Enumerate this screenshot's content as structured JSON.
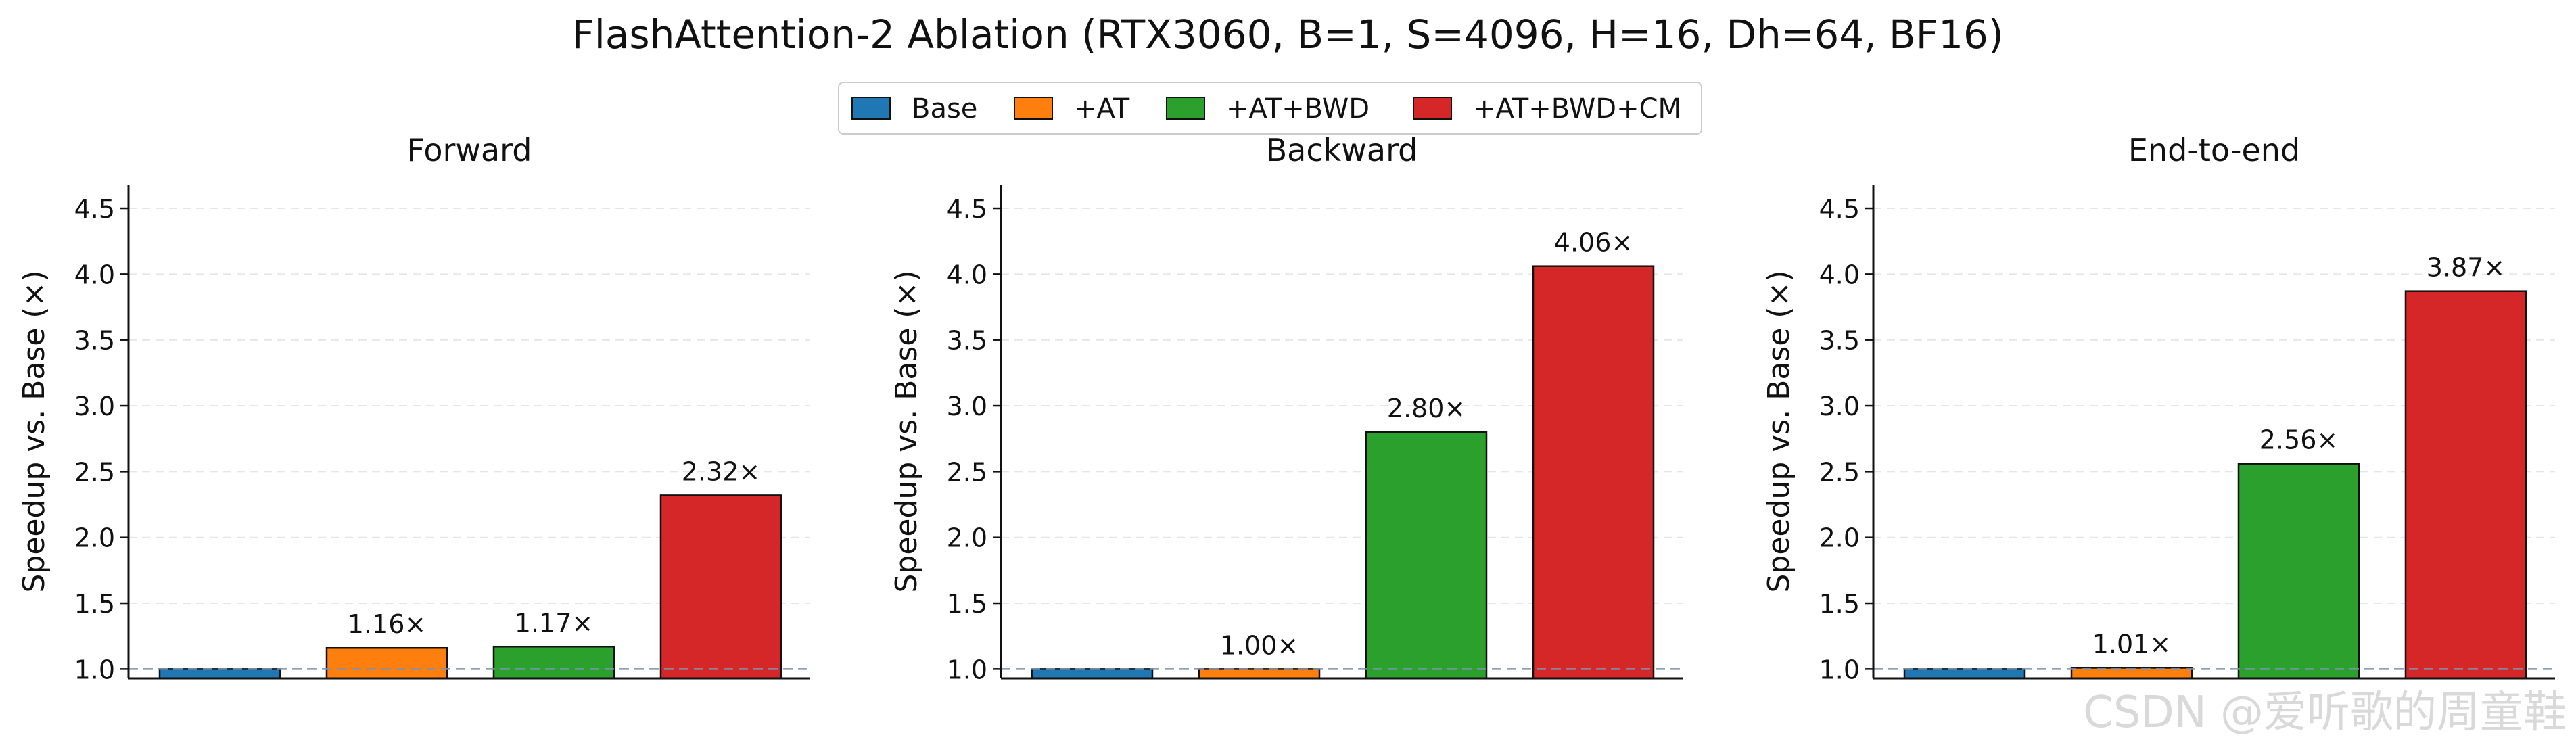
{
  "figure": {
    "title": "FlashAttention-2 Ablation (RTX3060, B=1, S=4096, H=16, Dh=64, BF16)",
    "watermark": "CSDN @爱听歌的周童鞋"
  },
  "legend": {
    "placement": "top-center",
    "entries": [
      {
        "label": "Base",
        "color": "#1f77b4"
      },
      {
        "label": "+AT",
        "color": "#ff7f0e"
      },
      {
        "label": "+AT+BWD",
        "color": "#2ca02c"
      },
      {
        "label": "+AT+BWD+CM",
        "color": "#d62728"
      }
    ]
  },
  "chart_data": [
    {
      "type": "bar",
      "title": "Forward",
      "ylabel": "Speedup vs. Base (×)",
      "xlabel": "",
      "categories": [
        "Base",
        "+AT",
        "+AT+BWD",
        "+AT+BWD+CM"
      ],
      "values": [
        1.0,
        1.16,
        1.17,
        2.32
      ],
      "data_labels": [
        "",
        "1.16×",
        "1.17×",
        "2.32×"
      ],
      "colors": [
        "#1f77b4",
        "#ff7f0e",
        "#2ca02c",
        "#d62728"
      ],
      "ylim": [
        0.93,
        4.68
      ],
      "yticks": [
        1.0,
        1.5,
        2.0,
        2.5,
        3.0,
        3.5,
        4.0,
        4.5
      ],
      "ytick_labels": [
        "1.0",
        "1.5",
        "2.0",
        "2.5",
        "3.0",
        "3.5",
        "4.0",
        "4.5"
      ],
      "reference_line": 1.0,
      "grid": "horizontal dashed"
    },
    {
      "type": "bar",
      "title": "Backward",
      "ylabel": "Speedup vs. Base (×)",
      "xlabel": "",
      "categories": [
        "Base",
        "+AT",
        "+AT+BWD",
        "+AT+BWD+CM"
      ],
      "values": [
        1.0,
        1.0,
        2.8,
        4.06
      ],
      "data_labels": [
        "",
        "1.00×",
        "2.80×",
        "4.06×"
      ],
      "colors": [
        "#1f77b4",
        "#ff7f0e",
        "#2ca02c",
        "#d62728"
      ],
      "ylim": [
        0.93,
        4.68
      ],
      "yticks": [
        1.0,
        1.5,
        2.0,
        2.5,
        3.0,
        3.5,
        4.0,
        4.5
      ],
      "ytick_labels": [
        "1.0",
        "1.5",
        "2.0",
        "2.5",
        "3.0",
        "3.5",
        "4.0",
        "4.5"
      ],
      "reference_line": 1.0,
      "grid": "horizontal dashed"
    },
    {
      "type": "bar",
      "title": "End-to-end",
      "ylabel": "Speedup vs. Base (×)",
      "xlabel": "",
      "categories": [
        "Base",
        "+AT",
        "+AT+BWD",
        "+AT+BWD+CM"
      ],
      "values": [
        1.0,
        1.01,
        2.56,
        3.87
      ],
      "data_labels": [
        "",
        "1.01×",
        "2.56×",
        "3.87×"
      ],
      "colors": [
        "#1f77b4",
        "#ff7f0e",
        "#2ca02c",
        "#d62728"
      ],
      "ylim": [
        0.93,
        4.68
      ],
      "yticks": [
        1.0,
        1.5,
        2.0,
        2.5,
        3.0,
        3.5,
        4.0,
        4.5
      ],
      "ytick_labels": [
        "1.0",
        "1.5",
        "2.0",
        "2.5",
        "3.0",
        "3.5",
        "4.0",
        "4.5"
      ],
      "reference_line": 1.0,
      "grid": "horizontal dashed"
    }
  ]
}
